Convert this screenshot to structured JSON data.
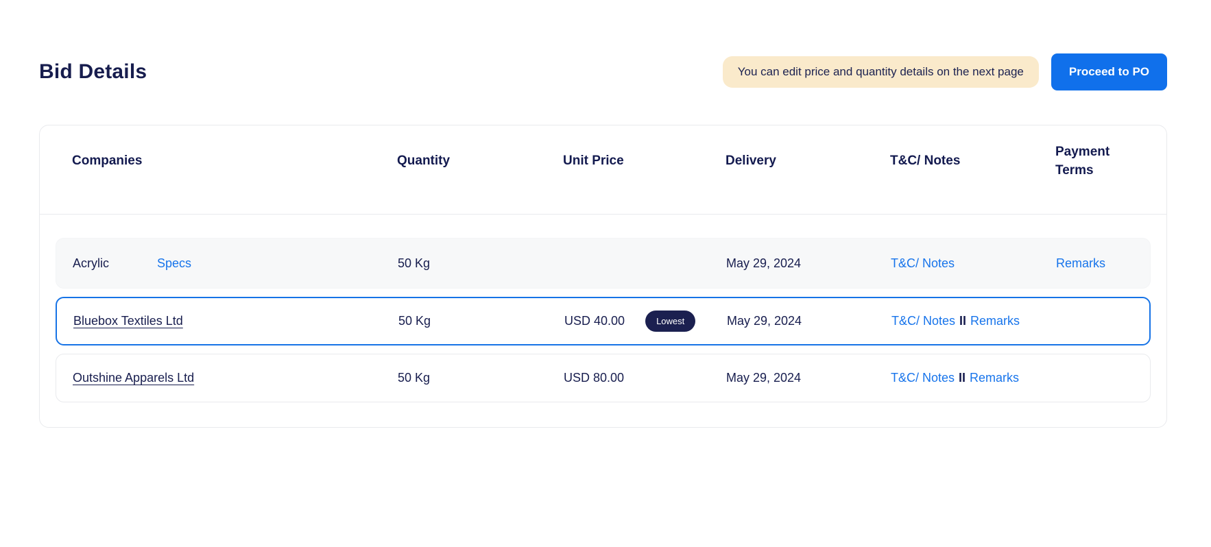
{
  "page": {
    "title": "Bid Details",
    "notice": "You can edit price and quantity details on the next page",
    "proceed_button": "Proceed to PO"
  },
  "colors": {
    "button_blue": "#1070EB",
    "link_blue": "#1774EB",
    "navy_text": "#171D4E",
    "notice_bg": "#FAEACB",
    "highlight_border": "#1673E6",
    "badge_bg": "#1B2050",
    "item_row_bg": "#F7F8F9"
  },
  "table": {
    "columns": [
      "Companies",
      "Quantity",
      "Unit Price",
      "Delivery",
      "T&C/ Notes",
      "Payment Terms"
    ],
    "item_row": {
      "name": "Acrylic",
      "specs_label": "Specs",
      "quantity": "50 Kg",
      "delivery": "May 29, 2024",
      "tc_notes_label": "T&C/ Notes",
      "remarks_label": "Remarks"
    },
    "bids": [
      {
        "company": "Bluebox Textiles Ltd",
        "quantity": "50 Kg",
        "unit_price": "USD 40.00",
        "badge": "Lowest",
        "delivery": "May 29, 2024",
        "tc_notes_label": "T&C/ Notes",
        "separator": "II",
        "remarks_label": "Remarks"
      },
      {
        "company": "Outshine Apparels Ltd",
        "quantity": "50 Kg",
        "unit_price": "USD 80.00",
        "delivery": "May 29, 2024",
        "tc_notes_label": "T&C/ Notes",
        "separator": "II",
        "remarks_label": "Remarks"
      }
    ]
  }
}
